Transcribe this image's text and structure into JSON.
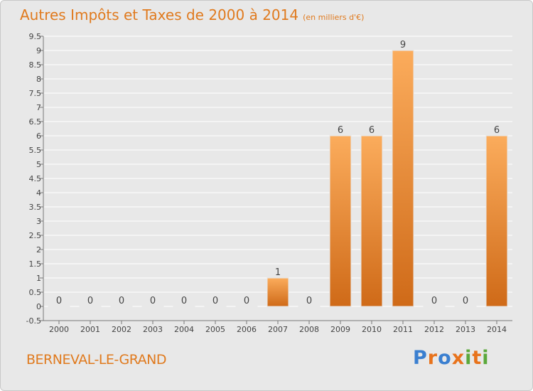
{
  "header": {
    "title": "Autres Impôts et Taxes de 2000 à 2014",
    "subtitle": "(en milliers d'€)"
  },
  "commune": "BERNEVAL-LE-GRAND",
  "logo": {
    "text": "Proxiti",
    "letter_colors": [
      "#3a7fd0",
      "#e8731c",
      "#3a7fd0",
      "#e8731c",
      "#5aa83a",
      "#e8731c",
      "#5aa83a"
    ]
  },
  "colors": {
    "bar_top": "#fbac5c",
    "bar_bottom": "#cf6a18",
    "bar_stroke": "#e8e8e8",
    "grid": "#ffffff",
    "axis": "#777777",
    "tick_text": "#444444"
  },
  "chart_data": {
    "type": "bar",
    "categories": [
      "2000",
      "2001",
      "2002",
      "2003",
      "2004",
      "2005",
      "2006",
      "2007",
      "2008",
      "2009",
      "2010",
      "2011",
      "2012",
      "2013",
      "2014"
    ],
    "values": [
      0,
      0,
      0,
      0,
      0,
      0,
      0,
      1,
      0,
      6,
      6,
      9,
      0,
      0,
      6
    ],
    "data_labels": [
      "0",
      "0",
      "0",
      "0",
      "0",
      "0",
      "0",
      "1",
      "0",
      "6",
      "6",
      "9",
      "0",
      "0",
      "6"
    ],
    "y_ticks": [
      -0.5,
      0,
      0.5,
      1,
      1.5,
      2,
      2.5,
      3,
      3.5,
      4,
      4.5,
      5,
      5.5,
      6,
      6.5,
      7,
      7.5,
      8,
      8.5,
      9,
      9.5
    ],
    "y_tick_labels": [
      "-0.5",
      "0",
      "0.5",
      "1",
      "1.5",
      "2",
      "2.5",
      "3",
      "3.5",
      "4",
      "4.5",
      "5",
      "5.5",
      "6",
      "6.5",
      "7",
      "7.5",
      "8",
      "8.5",
      "9",
      "9.5"
    ],
    "ylim": [
      -0.5,
      9.5
    ],
    "grid": true,
    "legend": "none",
    "title": "Autres Impôts et Taxes de 2000 à 2014",
    "xlabel": "",
    "ylabel": ""
  }
}
